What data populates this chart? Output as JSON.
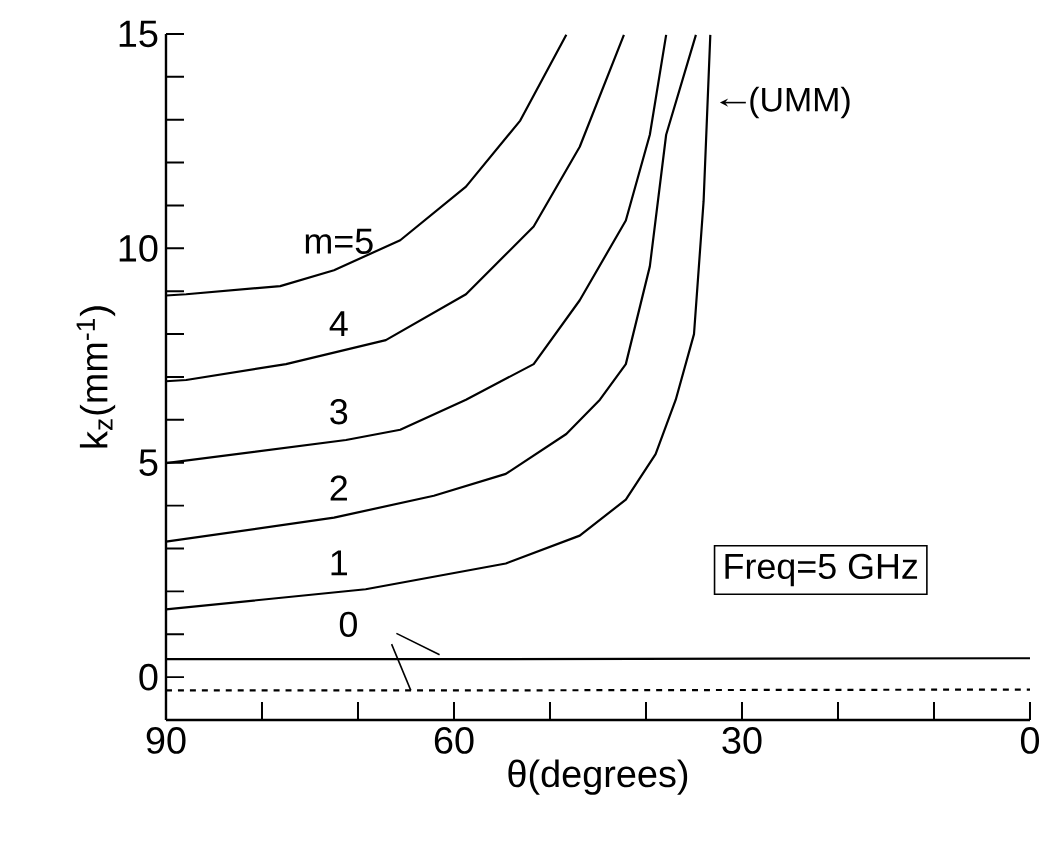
{
  "chart_data": {
    "type": "line",
    "xlabel": "θ(degrees)",
    "ylabel": "k$_{z}$(mm$^{-1}$)",
    "xlim": [
      90,
      0
    ],
    "ylim": [
      -1,
      15
    ],
    "xticks": [
      90,
      {
        "value": 80,
        "label": null
      },
      {
        "value": 70,
        "label": null
      },
      60,
      {
        "value": 50,
        "label": null
      },
      {
        "value": 40,
        "label": null
      },
      30,
      {
        "value": 20,
        "label": null
      },
      {
        "value": 10,
        "label": null
      },
      0
    ],
    "yticks": [
      {
        "value": -1,
        "label": null
      },
      0,
      {
        "value": 1,
        "label": null
      },
      {
        "value": 2,
        "label": null
      },
      {
        "value": 3,
        "label": null
      },
      {
        "value": 4,
        "label": null
      },
      5,
      {
        "value": 6,
        "label": null
      },
      {
        "value": 7,
        "label": null
      },
      {
        "value": 8,
        "label": null
      },
      {
        "value": 9,
        "label": null
      },
      10,
      {
        "value": 11,
        "label": null
      },
      {
        "value": 12,
        "label": null
      },
      {
        "value": 13,
        "label": null
      },
      {
        "value": 14,
        "label": null
      },
      15
    ],
    "series": [
      {
        "name": "0",
        "color": "#000000",
        "x": [
          90,
          60,
          30,
          0
        ],
        "values": [
          0.42,
          0.42,
          0.43,
          0.44
        ]
      },
      {
        "color": "#000000",
        "line_style": "dashed",
        "x": [
          90,
          60,
          30,
          0
        ],
        "values": [
          -0.31,
          -0.31,
          -0.3,
          -0.29
        ]
      },
      {
        "name": "1",
        "color": "#000000",
        "x": [
          90,
          69.2,
          54.6,
          46.9,
          42.1,
          39.0,
          36.9,
          35.0,
          34.0,
          33.3
        ],
        "values": [
          1.58,
          2.05,
          2.65,
          3.3,
          4.14,
          5.2,
          6.47,
          8.0,
          11.1,
          14.98
        ]
      },
      {
        "name": "2",
        "color": "#000000",
        "x": [
          90,
          72.5,
          62.1,
          54.6,
          48.3,
          44.8,
          42.1,
          39.6,
          37.9,
          34.8
        ],
        "values": [
          3.16,
          3.72,
          4.23,
          4.74,
          5.67,
          6.47,
          7.3,
          9.58,
          12.65,
          14.98
        ]
      },
      {
        "name": "3",
        "color": "#000000",
        "x": [
          90,
          71.25,
          65.6,
          58.75,
          51.7,
          46.9,
          42.1,
          39.6,
          37.9
        ],
        "values": [
          4.99,
          5.53,
          5.77,
          6.47,
          7.3,
          8.79,
          10.65,
          12.65,
          14.98
        ]
      },
      {
        "name": "4",
        "color": "#000000",
        "x": [
          90,
          87.9,
          77.5,
          67.1,
          58.75,
          51.7,
          46.9,
          42.3
        ],
        "values": [
          6.9,
          6.93,
          7.3,
          7.86,
          8.93,
          10.51,
          12.37,
          14.98
        ]
      },
      {
        "name": "m=5",
        "color": "#000000",
        "x": [
          90,
          87.9,
          78.1,
          72.5,
          65.6,
          58.75,
          53.1,
          48.3
        ],
        "values": [
          8.9,
          8.93,
          9.12,
          9.49,
          10.19,
          11.44,
          12.98,
          14.98
        ]
      }
    ],
    "annotations": [
      "(UMM)",
      "Freq=5 GHz"
    ]
  }
}
